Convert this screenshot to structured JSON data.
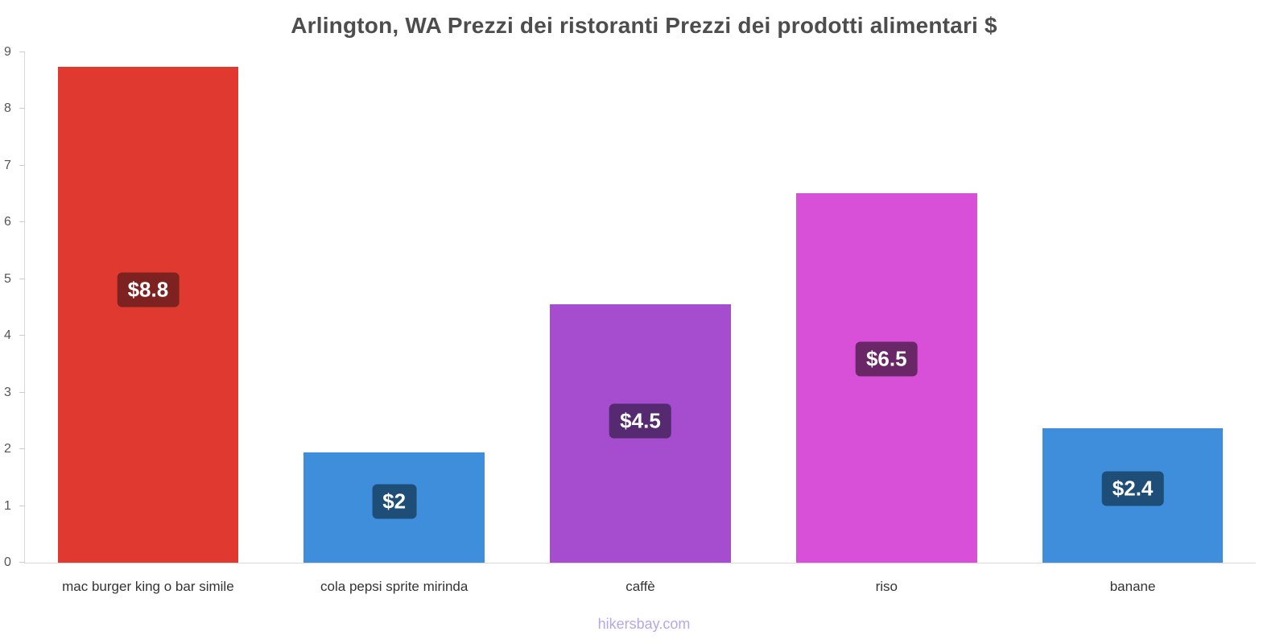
{
  "chart_data": {
    "type": "bar",
    "title": "Arlington, WA Prezzi dei ristoranti Prezzi dei prodotti alimentari $",
    "categories": [
      "mac burger king o bar simile",
      "cola pepsi sprite mirinda",
      "caffè",
      "riso",
      "banane"
    ],
    "values": [
      8.75,
      1.95,
      4.55,
      6.52,
      2.37
    ],
    "value_labels": [
      "$8.8",
      "$2",
      "$4.5",
      "$6.5",
      "$2.4"
    ],
    "bar_colors": [
      "#e03a30",
      "#3f8edc",
      "#a54ccf",
      "#d850d8",
      "#3f8edc"
    ],
    "badge_colors": [
      "#7d2220",
      "#1e4e78",
      "#552a70",
      "#692768",
      "#1e4e78"
    ],
    "ylim": [
      0,
      9
    ],
    "y_ticks": [
      0,
      1,
      2,
      3,
      4,
      5,
      6,
      7,
      8,
      9
    ],
    "xlabel": "",
    "ylabel": "",
    "grid": false,
    "legend": false
  },
  "footer": {
    "watermark": "hikersbay.com"
  }
}
